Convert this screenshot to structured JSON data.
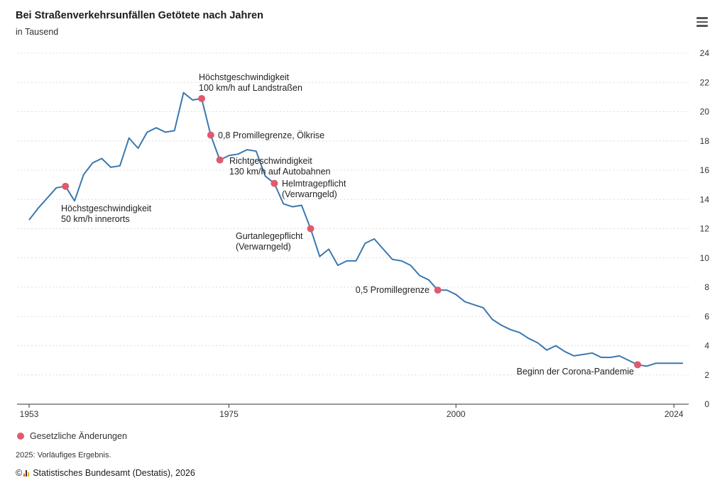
{
  "header": {
    "title": "Bei Straßenverkehrsunfällen Getötete nach Jahren",
    "subtitle": "in Tausend"
  },
  "legend": {
    "label": "Gesetzliche Änderungen",
    "color": "#e05a6d"
  },
  "footer": {
    "note": "2025: Vorläufiges Ergebnis.",
    "copyright_symbol": "©",
    "source": "Statistisches Bundesamt (Destatis), 2026"
  },
  "colors": {
    "line": "#3a78b0",
    "marker": "#e05a6d",
    "grid": "#dcdcdc"
  },
  "chart_data": {
    "type": "line",
    "title": "Bei Straßenverkehrsunfällen Getötete nach Jahren",
    "subtitle": "in Tausend",
    "xlim": [
      1953,
      2025
    ],
    "ylim": [
      0,
      24
    ],
    "yticks": [
      0,
      2,
      4,
      6,
      8,
      10,
      12,
      14,
      16,
      18,
      20,
      22,
      24
    ],
    "xticks": [
      1953,
      1975,
      2000,
      2024
    ],
    "grid": true,
    "series": [
      {
        "x": [
          1953,
          1954,
          1955,
          1956,
          1957,
          1958,
          1959,
          1960,
          1961,
          1962,
          1963,
          1964,
          1965,
          1966,
          1967,
          1968,
          1969,
          1970,
          1971,
          1972,
          1973,
          1974,
          1975,
          1976,
          1977,
          1978,
          1979,
          1980,
          1981,
          1982,
          1983,
          1984,
          1985,
          1986,
          1987,
          1988,
          1989,
          1990,
          1991,
          1992,
          1993,
          1994,
          1995,
          1996,
          1997,
          1998,
          1999,
          2000,
          2001,
          2002,
          2003,
          2004,
          2005,
          2006,
          2007,
          2008,
          2009,
          2010,
          2011,
          2012,
          2013,
          2014,
          2015,
          2016,
          2017,
          2018,
          2019,
          2020,
          2021,
          2022,
          2023,
          2024,
          2025
        ],
        "values": [
          12.6,
          13.4,
          14.1,
          14.8,
          14.9,
          13.9,
          15.7,
          16.5,
          16.8,
          16.2,
          16.3,
          18.2,
          17.5,
          18.6,
          18.9,
          18.6,
          18.7,
          21.3,
          20.8,
          20.9,
          18.4,
          16.7,
          17.0,
          17.1,
          17.4,
          17.3,
          15.6,
          15.1,
          13.7,
          13.5,
          13.6,
          12.0,
          10.1,
          10.6,
          9.5,
          9.8,
          9.8,
          11.0,
          11.3,
          10.6,
          9.9,
          9.8,
          9.5,
          8.8,
          8.5,
          7.8,
          7.8,
          7.5,
          7.0,
          6.8,
          6.6,
          5.8,
          5.4,
          5.1,
          4.9,
          4.5,
          4.2,
          3.7,
          4.0,
          3.6,
          3.3,
          3.4,
          3.5,
          3.2,
          3.2,
          3.3,
          3.0,
          2.7,
          2.6,
          2.8,
          2.8,
          2.8,
          2.8
        ]
      }
    ],
    "annotations": [
      {
        "year": 1957,
        "value": 14.9,
        "lines": [
          "Höchstgeschwindigkeit",
          "50 km/h innerorts"
        ]
      },
      {
        "year": 1972,
        "value": 20.9,
        "lines": [
          "Höchstgeschwindigkeit",
          "100 km/h auf Landstraßen"
        ]
      },
      {
        "year": 1973,
        "value": 18.4,
        "lines": [
          "0,8 Promillegrenze, Ölkrise"
        ]
      },
      {
        "year": 1974,
        "value": 16.7,
        "lines": [
          "Richtgeschwindigkeit",
          "130 km/h auf Autobahnen"
        ]
      },
      {
        "year": 1980,
        "value": 15.1,
        "lines": [
          "Helmtragepflicht",
          "(Verwarngeld)"
        ]
      },
      {
        "year": 1984,
        "value": 12.0,
        "lines": [
          "Gurtanlegepflicht",
          "(Verwarngeld)"
        ]
      },
      {
        "year": 1998,
        "value": 7.8,
        "lines": [
          "0,5 Promillegrenze"
        ]
      },
      {
        "year": 2020,
        "value": 2.7,
        "lines": [
          "Beginn der Corona-Pandemie"
        ]
      }
    ]
  }
}
